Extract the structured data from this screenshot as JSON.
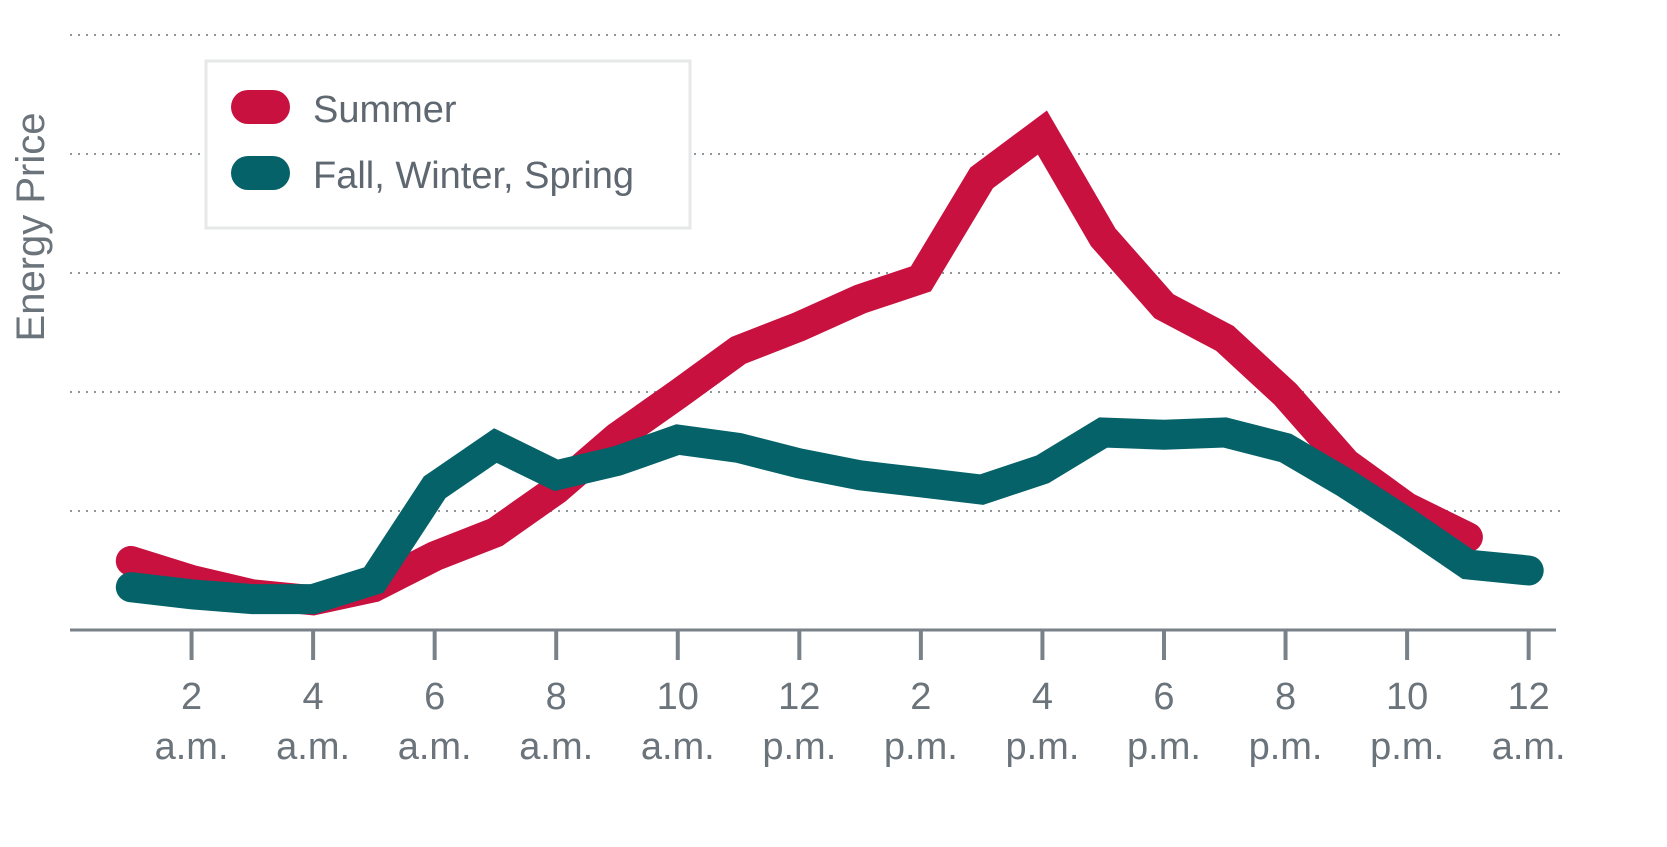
{
  "chart_data": {
    "type": "line",
    "title": "",
    "ylabel": "Energy Price",
    "xlabel": "",
    "x": [
      1,
      2,
      3,
      4,
      5,
      6,
      7,
      8,
      9,
      10,
      11,
      12,
      13,
      14,
      15,
      16,
      17,
      18,
      19,
      20,
      21,
      22,
      23,
      24
    ],
    "xticks": [
      {
        "x": 2,
        "line1": "2",
        "line2": "a.m."
      },
      {
        "x": 4,
        "line1": "4",
        "line2": "a.m."
      },
      {
        "x": 6,
        "line1": "6",
        "line2": "a.m."
      },
      {
        "x": 8,
        "line1": "8",
        "line2": "a.m."
      },
      {
        "x": 10,
        "line1": "10",
        "line2": "a.m."
      },
      {
        "x": 12,
        "line1": "12",
        "line2": "p.m."
      },
      {
        "x": 14,
        "line1": "2",
        "line2": "p.m."
      },
      {
        "x": 16,
        "line1": "4",
        "line2": "p.m."
      },
      {
        "x": 18,
        "line1": "6",
        "line2": "p.m."
      },
      {
        "x": 20,
        "line1": "8",
        "line2": "p.m."
      },
      {
        "x": 22,
        "line1": "10",
        "line2": "p.m."
      },
      {
        "x": 24,
        "line1": "12",
        "line2": "a.m."
      }
    ],
    "xlim": [
      0.0,
      24.45
    ],
    "ylim": [
      0,
      5
    ],
    "gridlines_y": [
      1,
      2,
      3,
      4,
      5
    ],
    "grid": true,
    "legend_position": "top-left",
    "series": [
      {
        "name": "Summer",
        "color": "#c8113f",
        "values": [
          0.58,
          0.42,
          0.3,
          0.25,
          0.36,
          0.62,
          0.82,
          1.18,
          1.62,
          1.98,
          2.35,
          2.55,
          2.78,
          2.95,
          3.8,
          4.18,
          3.3,
          2.72,
          2.45,
          1.98,
          1.4,
          1.03,
          0.78,
          null
        ]
      },
      {
        "name": "Fall, Winter, Spring",
        "color": "#046268",
        "values": [
          0.36,
          0.3,
          0.26,
          0.26,
          0.42,
          1.2,
          1.55,
          1.3,
          1.42,
          1.6,
          1.53,
          1.4,
          1.3,
          1.24,
          1.18,
          1.35,
          1.66,
          1.64,
          1.66,
          1.53,
          1.23,
          0.9,
          0.55,
          0.5
        ]
      }
    ]
  }
}
